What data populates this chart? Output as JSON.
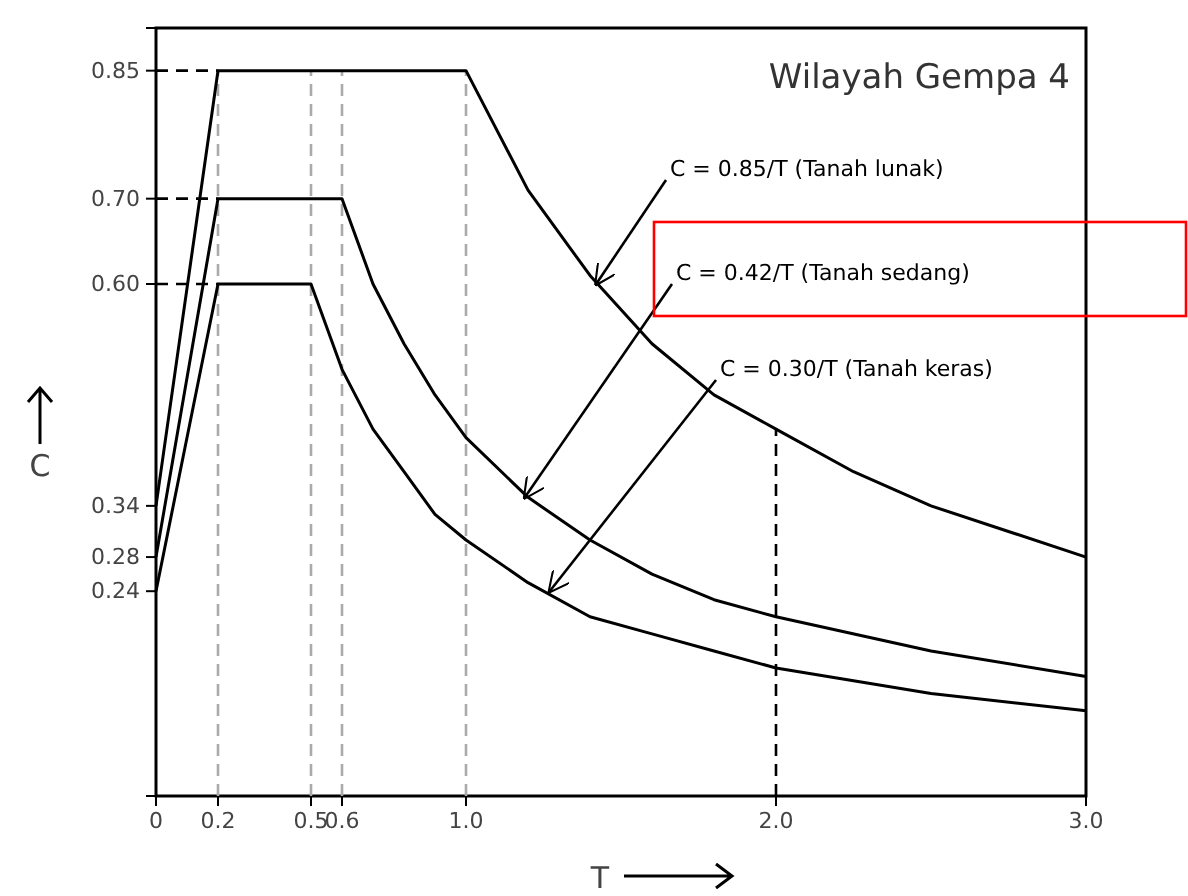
{
  "chart_data": {
    "type": "line",
    "title": "Wilayah Gempa 4",
    "xlabel": "T",
    "ylabel": "C",
    "xlim": [
      0,
      3
    ],
    "ylim": [
      0,
      0.9
    ],
    "xticks": [
      0,
      0.2,
      0.5,
      0.6,
      {
        "value": 1,
        "label": "1.0"
      },
      {
        "value": 2,
        "label": "2.0"
      },
      {
        "value": 3,
        "label": "3.0"
      }
    ],
    "yticks": [
      0.24,
      0.28,
      0.34,
      {
        "value": 0.6,
        "label": "0.60"
      },
      {
        "value": 0.7,
        "label": "0.70"
      },
      0.85
    ],
    "grid": false,
    "marker": "none",
    "line_style": "solid",
    "annotations": [
      {
        "text": "C = 0.85/T (Tanah lunak)",
        "x": 1.42,
        "y": 0.6
      },
      {
        "text": "C = 0.42/T (Tanah sedang)",
        "x": 1.19,
        "y": 0.35
      },
      {
        "text": "C = 0.30/T (Tanah keras)",
        "x": 1.27,
        "y": 0.24
      }
    ],
    "series": [
      {
        "color": "#000000",
        "x": [
          0,
          0.2,
          1.0,
          1.2,
          1.4,
          1.6,
          1.8,
          2.0,
          2.25,
          2.5,
          2.75,
          3.0
        ],
        "values": [
          0.34,
          0.85,
          0.85,
          0.71,
          0.61,
          0.53,
          0.47,
          0.43,
          0.38,
          0.34,
          0.31,
          0.28
        ]
      },
      {
        "color": "#000000",
        "x": [
          0,
          0.2,
          0.6,
          0.7,
          0.8,
          0.9,
          1.0,
          1.2,
          1.4,
          1.6,
          1.8,
          2.0,
          2.5,
          3.0
        ],
        "values": [
          0.28,
          0.7,
          0.7,
          0.6,
          0.53,
          0.47,
          0.42,
          0.35,
          0.3,
          0.26,
          0.23,
          0.21,
          0.17,
          0.14
        ]
      },
      {
        "color": "#000000",
        "x": [
          0,
          0.2,
          0.5,
          0.6,
          0.7,
          0.8,
          0.9,
          1.0,
          1.2,
          1.4,
          1.6,
          1.8,
          2.0,
          2.5,
          3.0
        ],
        "values": [
          0.24,
          0.6,
          0.6,
          0.5,
          0.43,
          0.38,
          0.33,
          0.3,
          0.25,
          0.21,
          0.19,
          0.17,
          0.15,
          0.12,
          0.1
        ]
      },
      {
        "color": "#000000",
        "line_style": "dashed",
        "x": [
          0,
          0.2
        ],
        "values": [
          0.85,
          0.85
        ]
      },
      {
        "color": "#000000",
        "line_style": "dashed",
        "x": [
          0,
          0.2
        ],
        "values": [
          0.7,
          0.7
        ]
      },
      {
        "color": "#000000",
        "line_style": "dashed",
        "x": [
          0,
          0.2
        ],
        "values": [
          0.6,
          0.6
        ]
      }
    ],
    "ref_lines": [
      {
        "axis": "x",
        "value": 0.2,
        "color": "#aaaaaa",
        "line_style": "dashed"
      },
      {
        "axis": "x",
        "value": 0.5,
        "color": "#aaaaaa",
        "line_style": "dashed"
      },
      {
        "axis": "x",
        "value": 0.6,
        "color": "#aaaaaa",
        "line_style": "dashed"
      },
      {
        "axis": "x",
        "value": 1.0,
        "color": "#aaaaaa",
        "line_style": "dashed"
      },
      {
        "axis": "x",
        "value": 2.0,
        "color": "#000000",
        "line_style": "dashed"
      }
    ]
  }
}
